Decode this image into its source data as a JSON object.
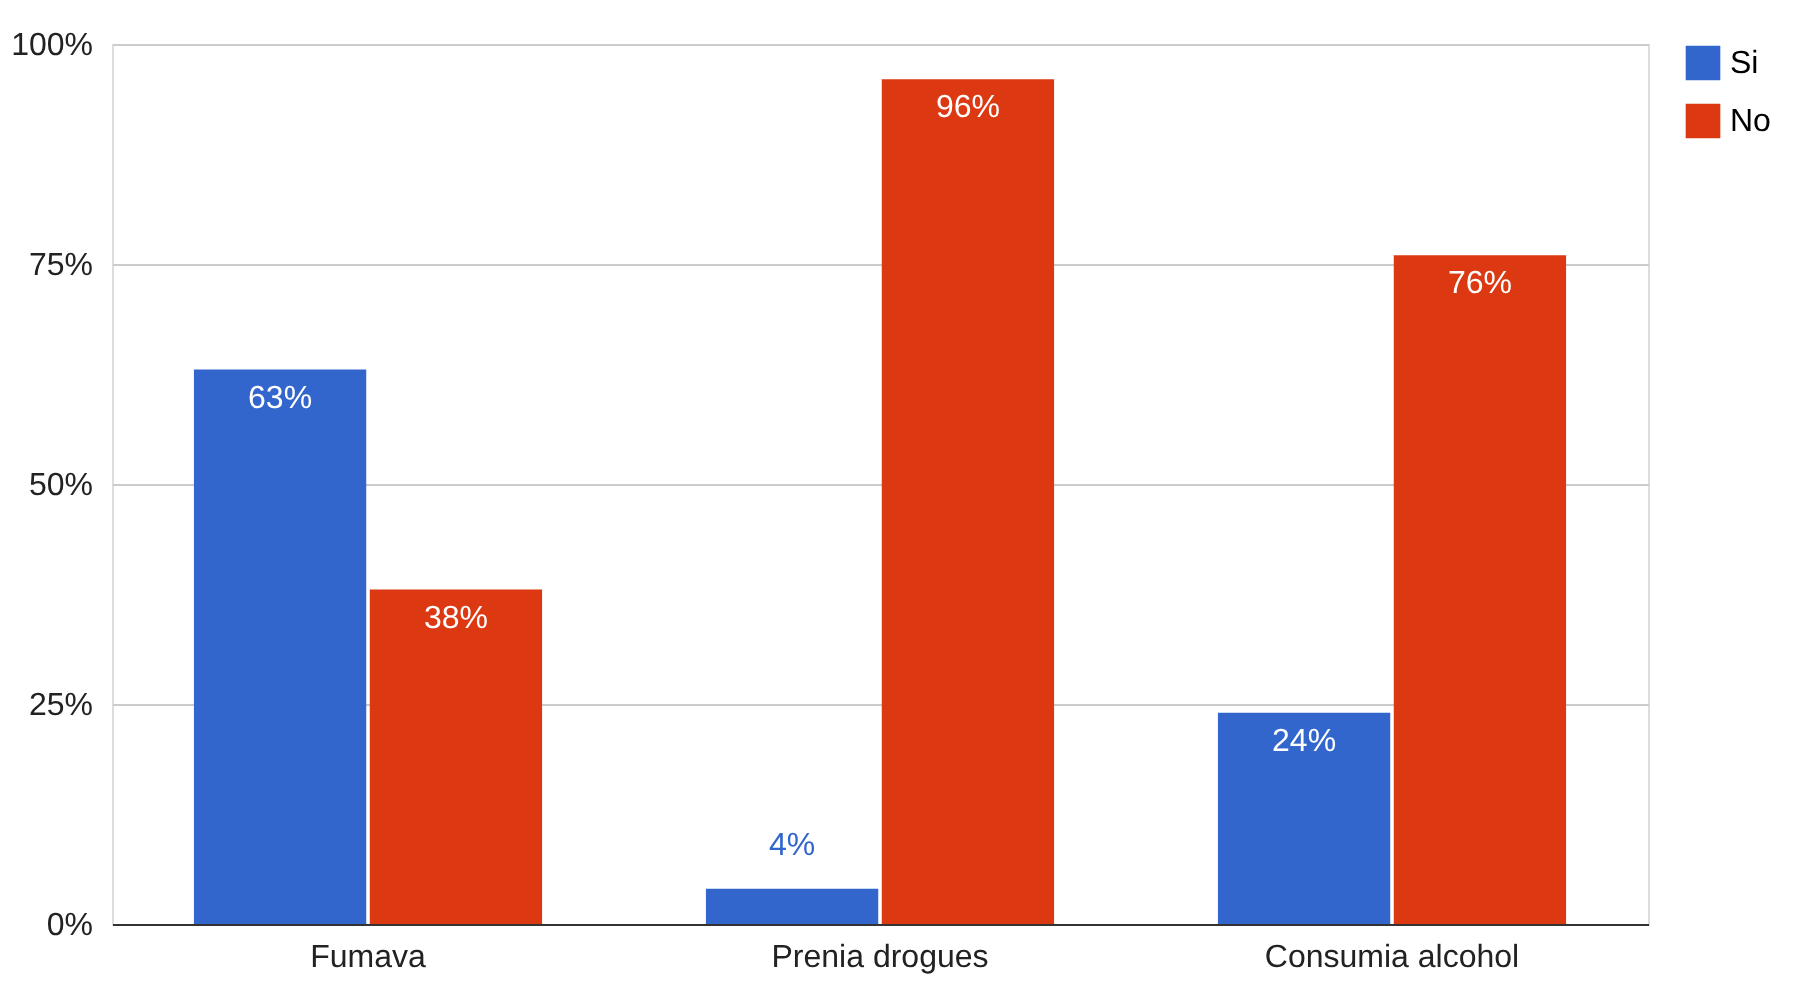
{
  "chart_data": {
    "type": "bar",
    "categories": [
      "Fumava",
      "Prenia drogues",
      "Consumia alcohol"
    ],
    "series": [
      {
        "name": "Si",
        "color": "#3366cc",
        "values": [
          63,
          4,
          24
        ],
        "value_labels": [
          "63%",
          "4%",
          "24%"
        ]
      },
      {
        "name": "No",
        "color": "#dc3912",
        "values": [
          38,
          96,
          76
        ],
        "value_labels": [
          "38%",
          "96%",
          "76%"
        ]
      }
    ],
    "ylim": [
      0,
      100
    ],
    "yticks": [
      {
        "value": 0,
        "label": "0%"
      },
      {
        "value": 25,
        "label": "25%"
      },
      {
        "value": 50,
        "label": "50%"
      },
      {
        "value": 75,
        "label": "75%"
      },
      {
        "value": 100,
        "label": "100%"
      }
    ],
    "grid": "y",
    "legend": "top right"
  }
}
